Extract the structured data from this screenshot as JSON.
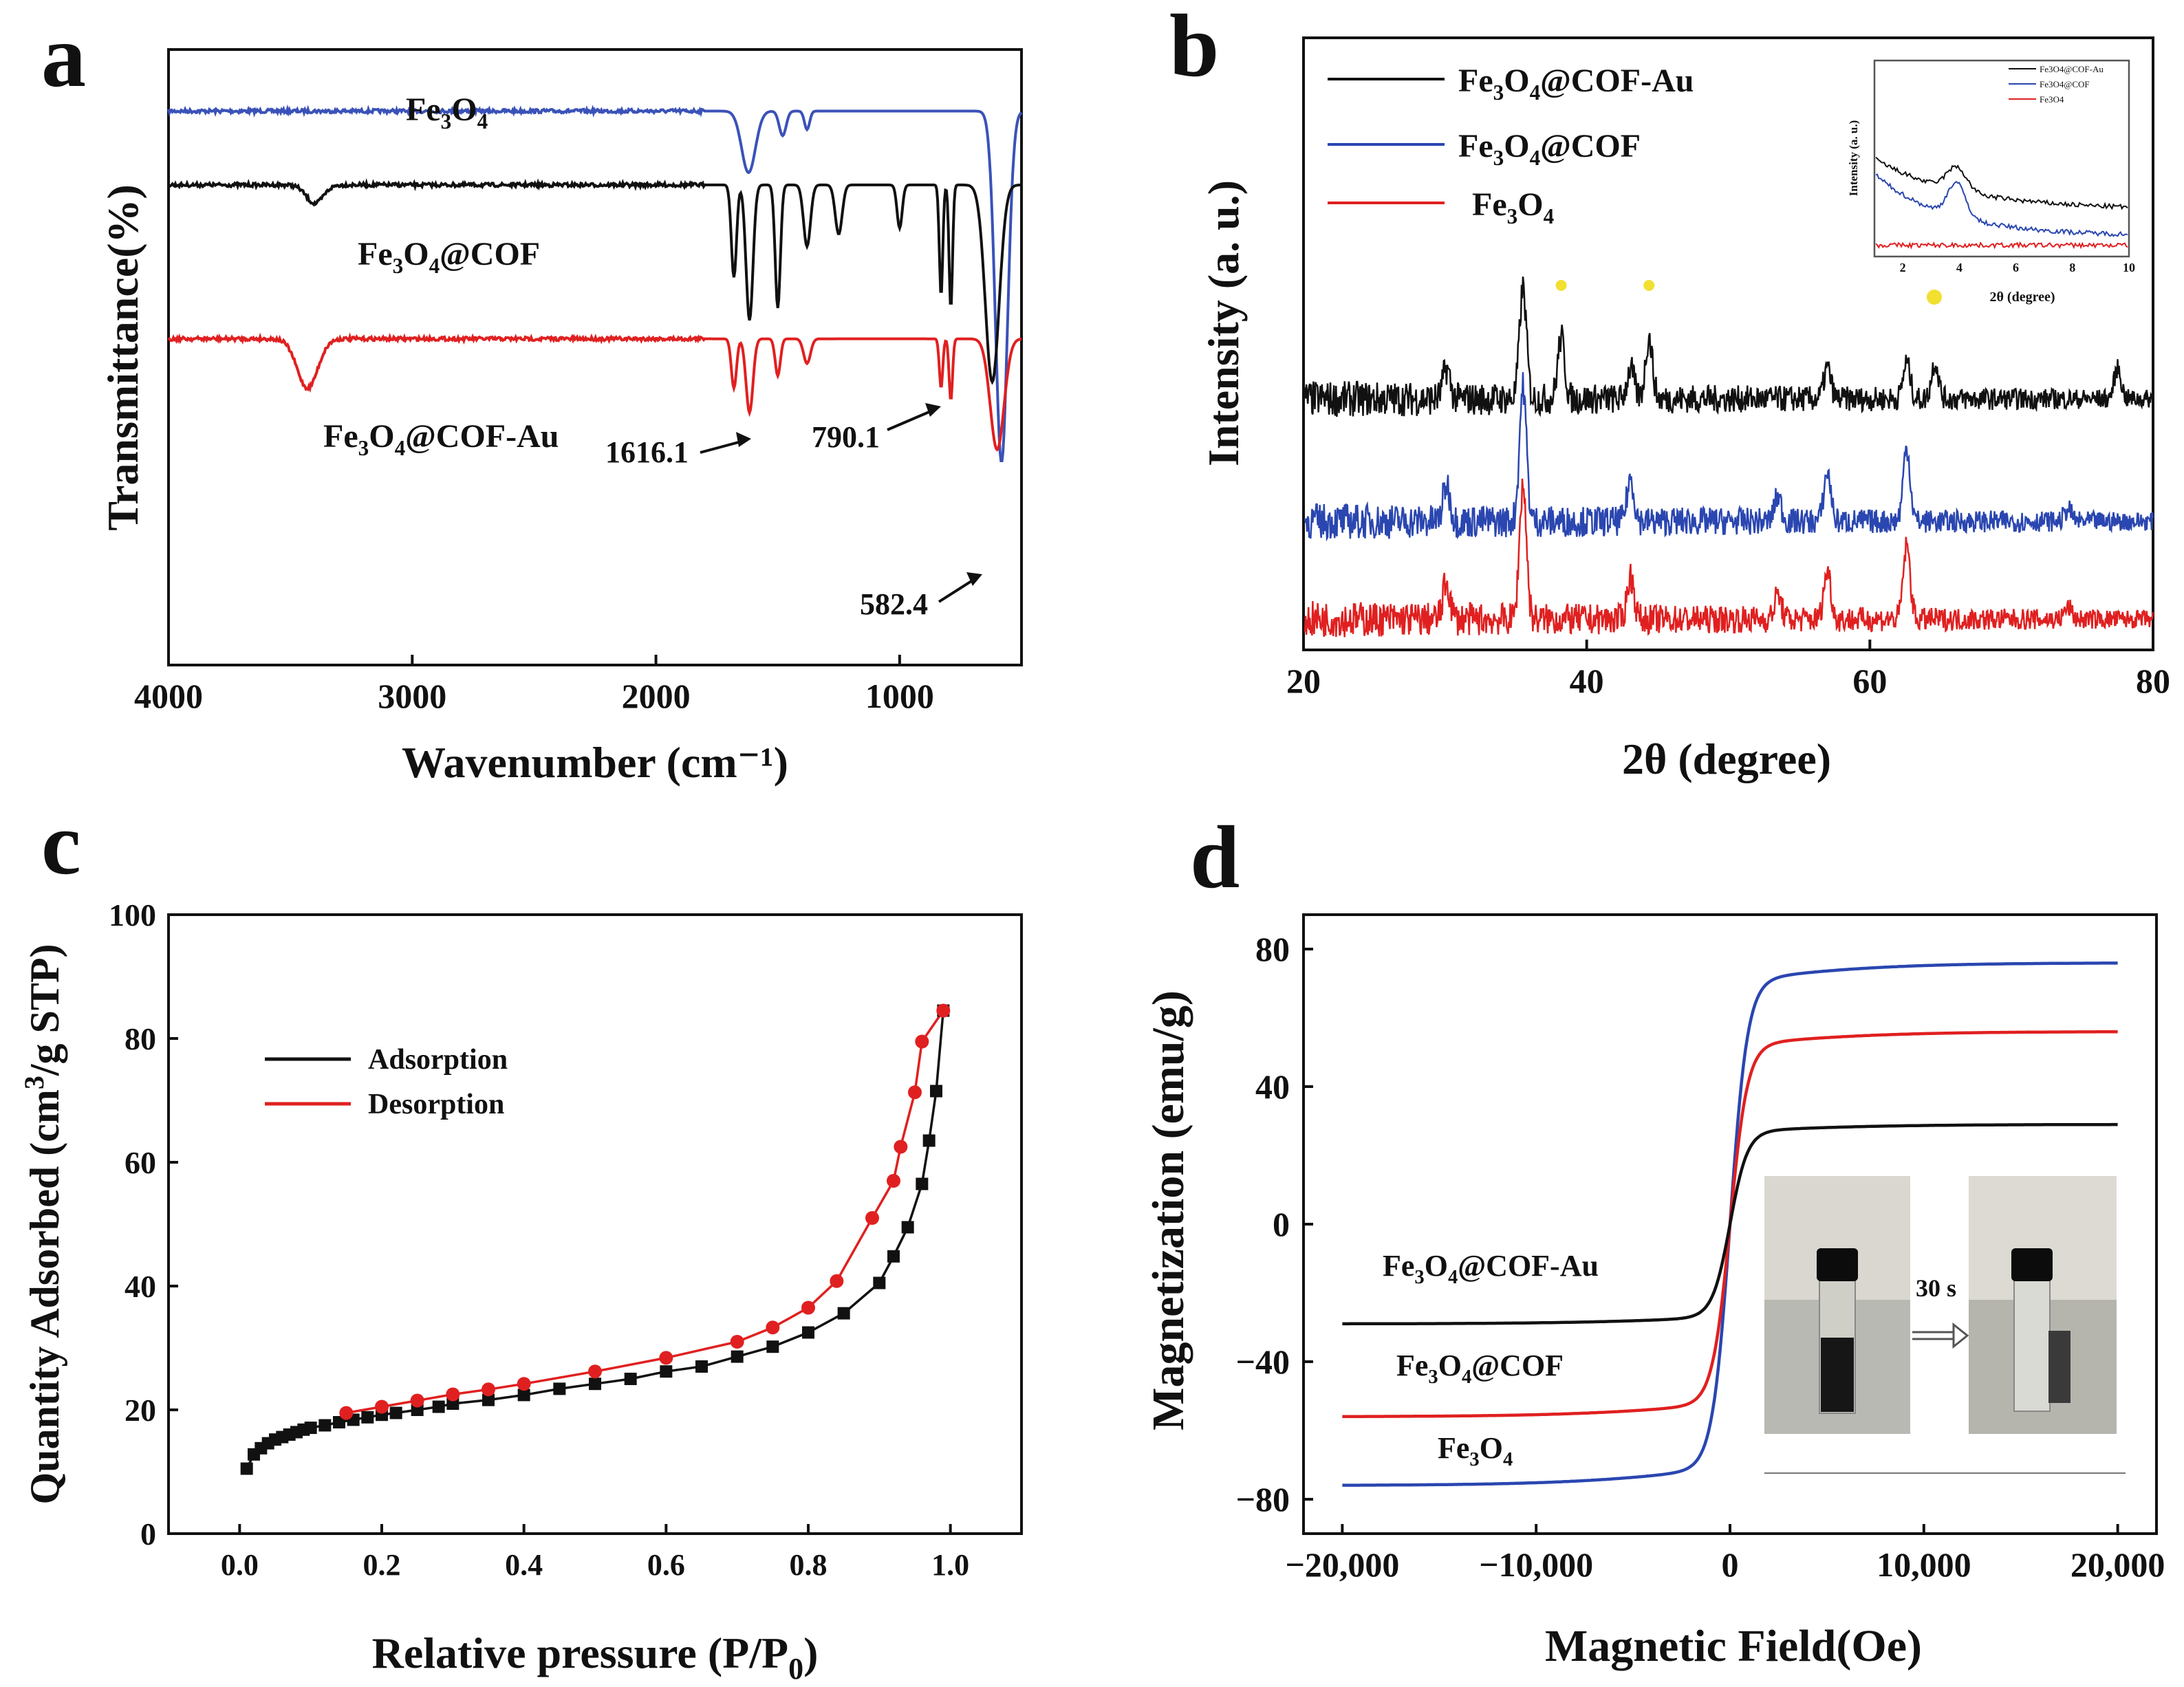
{
  "chart_data": [
    {
      "panel": "a",
      "type": "line",
      "title": "",
      "xlabel": "Wavenumber (cm⁻¹)",
      "ylabel": "Transmittance(%)",
      "xlim": [
        4000,
        500
      ],
      "xticks": [
        4000,
        3000,
        2000,
        1000
      ],
      "series": [
        {
          "name": "Fe3O4",
          "label_main": "Fe",
          "label_parts": [
            "Fe",
            "3",
            "O",
            "4",
            ""
          ],
          "color": "#3a52b8",
          "baseline": 0.1,
          "peaks": [
            [
              1620,
              0.1,
              40
            ],
            [
              1480,
              0.04,
              20
            ],
            [
              1380,
              0.03,
              15
            ],
            [
              582,
              0.57,
              35
            ]
          ]
        },
        {
          "name": "Fe3O4@COF",
          "label_parts": [
            "Fe",
            "3",
            "O",
            "4",
            "@COF"
          ],
          "color": "#111111",
          "baseline": 0.22,
          "peaks": [
            [
              3400,
              0.03,
              50
            ],
            [
              1680,
              0.15,
              15
            ],
            [
              1616,
              0.22,
              20
            ],
            [
              1500,
              0.2,
              15
            ],
            [
              1380,
              0.1,
              20
            ],
            [
              1250,
              0.08,
              20
            ],
            [
              1000,
              0.07,
              15
            ],
            [
              830,
              0.18,
              10
            ],
            [
              790,
              0.2,
              10
            ],
            [
              620,
              0.32,
              40
            ]
          ]
        },
        {
          "name": "Fe3O4@COF-Au",
          "label_parts": [
            "Fe",
            "3",
            "O",
            "4",
            "@COF-Au"
          ],
          "color": "#e02020",
          "baseline": 0.47,
          "peaks": [
            [
              3430,
              0.08,
              60
            ],
            [
              1680,
              0.08,
              15
            ],
            [
              1616,
              0.12,
              20
            ],
            [
              1500,
              0.06,
              15
            ],
            [
              1380,
              0.04,
              20
            ],
            [
              830,
              0.08,
              10
            ],
            [
              790,
              0.1,
              10
            ],
            [
              600,
              0.18,
              40
            ]
          ]
        }
      ],
      "annotations": [
        "1616.1",
        "790.1",
        "582.4"
      ]
    },
    {
      "panel": "b",
      "type": "line",
      "xlabel": "2θ (degree)",
      "ylabel": "Intensity (a. u.)",
      "xlim": [
        20,
        80
      ],
      "xticks": [
        20,
        40,
        60,
        80
      ],
      "series": [
        {
          "name": "Fe3O4@COF-Au",
          "label_parts": [
            "Fe",
            "3",
            "O",
            "4",
            "@COF-Au"
          ],
          "color": "#111111",
          "offset": 0.38,
          "peaks": [
            [
              30.1,
              0.05
            ],
            [
              35.5,
              0.18
            ],
            [
              38.2,
              0.1
            ],
            [
              43.1,
              0.05
            ],
            [
              44.4,
              0.1
            ],
            [
              57.0,
              0.05
            ],
            [
              62.6,
              0.06
            ],
            [
              64.6,
              0.06
            ],
            [
              77.5,
              0.05
            ]
          ]
        },
        {
          "name": "Fe3O4@COF",
          "label_parts": [
            "Fe",
            "3",
            "O",
            "4",
            "@COF"
          ],
          "color": "#2a46b0",
          "offset": 0.18,
          "peaks": [
            [
              30.1,
              0.06
            ],
            [
              35.5,
              0.22
            ],
            [
              43.1,
              0.07
            ],
            [
              53.5,
              0.04
            ],
            [
              57.0,
              0.08
            ],
            [
              62.6,
              0.12
            ],
            [
              74.0,
              0.02
            ]
          ]
        },
        {
          "name": "Fe3O4",
          "label_parts": [
            "Fe",
            "3",
            "O",
            "4",
            ""
          ],
          "color": "#e02020",
          "offset": 0.02,
          "peaks": [
            [
              30.1,
              0.06
            ],
            [
              35.5,
              0.22
            ],
            [
              43.1,
              0.07
            ],
            [
              53.5,
              0.04
            ],
            [
              57.0,
              0.08
            ],
            [
              62.6,
              0.12
            ],
            [
              74.0,
              0.02
            ]
          ]
        }
      ],
      "inset": {
        "xlabel": "2θ (degree)",
        "ylabel": "Intensity (a. u.)",
        "xlim": [
          1,
          10
        ],
        "xticks": [
          2,
          4,
          6,
          8,
          10
        ],
        "legend": [
          "Fe3O4@COF-Au",
          "Fe3O4@COF",
          "Fe3O4"
        ]
      }
    },
    {
      "panel": "c",
      "type": "scatter",
      "xlabel": "Relative pressure (P/P0)",
      "ylabel": "Quantity Adsorbed (cm3/g STP)",
      "xlim": [
        -0.1,
        1.1
      ],
      "ylim": [
        0,
        100
      ],
      "xticks": [
        0.0,
        0.2,
        0.4,
        0.6,
        0.8,
        1.0
      ],
      "yticks": [
        0,
        20,
        40,
        60,
        80,
        100
      ],
      "series": [
        {
          "name": "Adsorption",
          "color": "#111111",
          "marker": "square",
          "x": [
            0.01,
            0.02,
            0.03,
            0.04,
            0.05,
            0.06,
            0.07,
            0.08,
            0.09,
            0.1,
            0.12,
            0.14,
            0.16,
            0.18,
            0.2,
            0.22,
            0.25,
            0.28,
            0.3,
            0.35,
            0.4,
            0.45,
            0.5,
            0.55,
            0.6,
            0.65,
            0.7,
            0.75,
            0.8,
            0.85,
            0.9,
            0.92,
            0.94,
            0.96,
            0.97,
            0.98,
            0.99
          ],
          "y": [
            10.5,
            12.8,
            13.8,
            14.6,
            15.2,
            15.6,
            16.0,
            16.4,
            16.8,
            17.1,
            17.5,
            18.0,
            18.4,
            18.8,
            19.2,
            19.5,
            20.0,
            20.5,
            21.0,
            21.6,
            22.4,
            23.4,
            24.2,
            25.0,
            26.2,
            27.0,
            28.6,
            30.2,
            32.5,
            35.6,
            40.5,
            44.8,
            49.5,
            56.5,
            63.5,
            71.5,
            84.5
          ]
        },
        {
          "name": "Desorption",
          "color": "#e02020",
          "marker": "circle",
          "x": [
            0.15,
            0.2,
            0.25,
            0.3,
            0.35,
            0.4,
            0.5,
            0.6,
            0.7,
            0.75,
            0.8,
            0.84,
            0.89,
            0.92,
            0.93,
            0.95,
            0.96,
            0.99
          ],
          "y": [
            19.5,
            20.5,
            21.5,
            22.5,
            23.3,
            24.2,
            26.2,
            28.4,
            31.0,
            33.3,
            36.5,
            40.8,
            51.0,
            57.0,
            62.5,
            71.3,
            79.5,
            84.5
          ]
        }
      ]
    },
    {
      "panel": "d",
      "type": "line",
      "xlabel": "Magnetic Field(Oe)",
      "ylabel": "Magnetization (emu/g)",
      "xlim": [
        -22000,
        22000
      ],
      "ylim": [
        -90,
        90
      ],
      "xticks": [
        -20000,
        -10000,
        0,
        10000,
        20000
      ],
      "xtick_labels": [
        "−20,000",
        "−10,000",
        "0",
        "10,000",
        "20,000"
      ],
      "yticks": [
        -80,
        -40,
        0,
        40,
        80
      ],
      "yticks_labels": [
        "−80",
        "−40",
        "0",
        "40",
        "80"
      ],
      "series": [
        {
          "name": "Fe3O4",
          "label_parts": [
            "Fe",
            "3",
            "O",
            "4",
            ""
          ],
          "color": "#2a46b0",
          "Ms": 76
        },
        {
          "name": "Fe3O4@COF",
          "label_parts": [
            "Fe",
            "3",
            "O",
            "4",
            "@COF"
          ],
          "color": "#e02020",
          "Ms": 56
        },
        {
          "name": "Fe3O4@COF-Au",
          "label_parts": [
            "Fe",
            "3",
            "O",
            "4",
            "@COF-Au"
          ],
          "color": "#111111",
          "Ms": 29
        }
      ],
      "inset_text": "30 s"
    }
  ],
  "panel_letters": [
    "a",
    "b",
    "c",
    "d"
  ]
}
